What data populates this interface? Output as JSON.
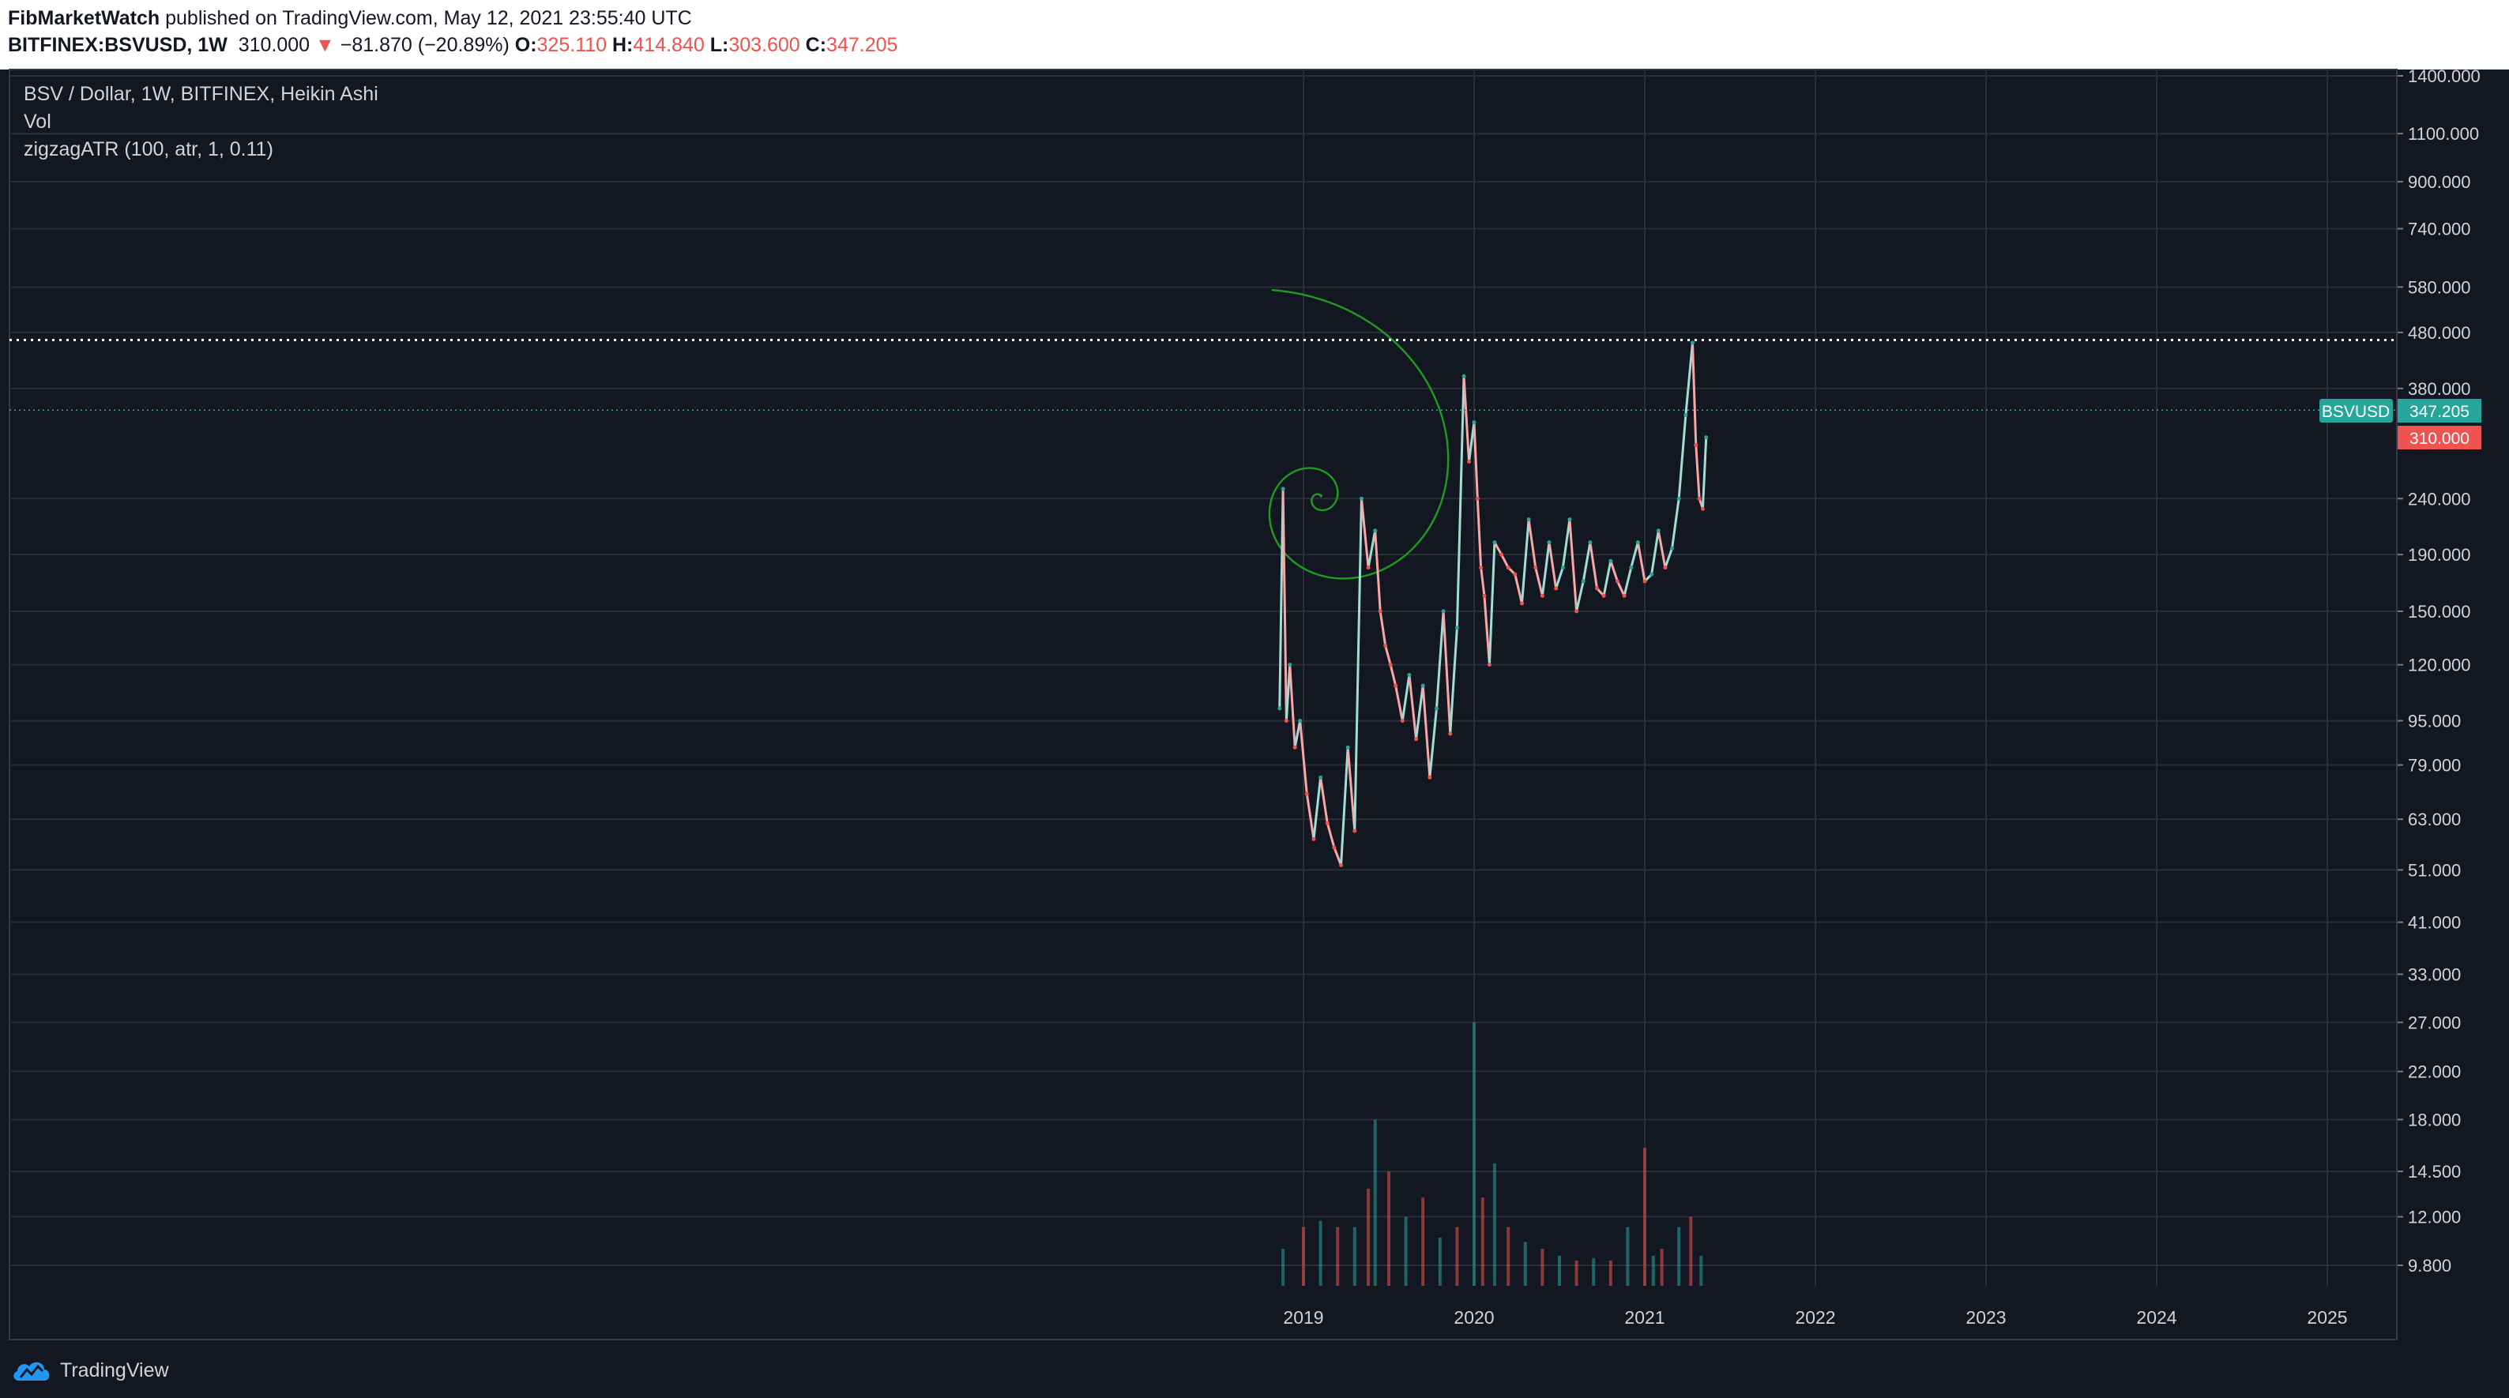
{
  "header": {
    "author": "FibMarketWatch",
    "published_text": "published on TradingView.com, May 12, 2021 23:55:40 UTC",
    "symbol": "BITFINEX:BSVUSD, 1W",
    "last_price": "310.000",
    "change_arrow": "▼",
    "change": "−81.870 (−20.89%)",
    "o_label": "O:",
    "o_value": "325.110",
    "h_label": "H:",
    "h_value": "414.840",
    "l_label": "L:",
    "l_value": "303.600",
    "c_label": "C:",
    "c_value": "347.205"
  },
  "legend": {
    "title": "BSV / Dollar, 1W, BITFINEX, Heikin Ashi",
    "vol": "Vol",
    "indicator": "zigzagATR (100, atr, 1, 0.11)"
  },
  "badges": {
    "symbol_label": "BSVUSD",
    "close_value": "347.205",
    "last_value": "310.000"
  },
  "footer": {
    "brand": "TradingView"
  },
  "colors": {
    "background": "#131722",
    "grid": "#2a2e39",
    "up": "#26a69a",
    "down": "#ef5350",
    "price_line_up": "#a3dcd5",
    "price_line_down": "#f7a8a6",
    "fib_spiral": "#1f9b1f",
    "resistance_line": "#ffffff"
  },
  "chart_data": {
    "type": "line",
    "title": "BSV / Dollar, 1W, BITFINEX, Heikin Ashi",
    "y_scale": "log",
    "ylim": [
      8.5,
      1500
    ],
    "xlim": [
      2011.75,
      2025.85
    ],
    "y_ticks": [
      "1400.000",
      "1100.000",
      "900.000",
      "740.000",
      "580.000",
      "480.000",
      "380.000",
      "240.000",
      "190.000",
      "150.000",
      "120.000",
      "95.000",
      "79.000",
      "63.000",
      "51.000",
      "41.000",
      "33.000",
      "27.000",
      "22.000",
      "18.000",
      "14.500",
      "12.000",
      "9.800"
    ],
    "x_ticks": [
      "2019",
      "2020",
      "2021",
      "2022",
      "2023",
      "2024",
      "2025"
    ],
    "grid": true,
    "price_series": {
      "x": [
        2018.86,
        2018.88,
        2018.9,
        2018.92,
        2018.95,
        2018.98,
        2019.02,
        2019.06,
        2019.1,
        2019.14,
        2019.18,
        2019.22,
        2019.26,
        2019.3,
        2019.34,
        2019.38,
        2019.42,
        2019.45,
        2019.48,
        2019.51,
        2019.54,
        2019.58,
        2019.62,
        2019.66,
        2019.7,
        2019.74,
        2019.78,
        2019.82,
        2019.86,
        2019.9,
        2019.94,
        2019.97,
        2020.0,
        2020.02,
        2020.04,
        2020.06,
        2020.09,
        2020.12,
        2020.16,
        2020.2,
        2020.24,
        2020.28,
        2020.32,
        2020.36,
        2020.4,
        2020.44,
        2020.48,
        2020.52,
        2020.56,
        2020.6,
        2020.64,
        2020.68,
        2020.72,
        2020.76,
        2020.8,
        2020.84,
        2020.88,
        2020.92,
        2020.96,
        2021.0,
        2021.04,
        2021.08,
        2021.12,
        2021.16,
        2021.2,
        2021.24,
        2021.28,
        2021.3,
        2021.32,
        2021.34,
        2021.36
      ],
      "y": [
        100,
        250,
        95,
        120,
        85,
        95,
        70,
        58,
        75,
        62,
        56,
        52,
        85,
        60,
        240,
        180,
        210,
        150,
        130,
        120,
        110,
        95,
        115,
        88,
        110,
        75,
        100,
        150,
        90,
        140,
        400,
        280,
        330,
        240,
        180,
        160,
        120,
        200,
        190,
        180,
        175,
        155,
        220,
        180,
        160,
        200,
        165,
        180,
        220,
        150,
        170,
        200,
        165,
        160,
        185,
        170,
        160,
        180,
        200,
        170,
        175,
        210,
        180,
        195,
        240,
        340,
        460,
        300,
        240,
        230,
        310
      ],
      "unit": "USD"
    },
    "volume_series": {
      "x": [
        2018.88,
        2019.0,
        2019.1,
        2019.2,
        2019.3,
        2019.38,
        2019.42,
        2019.5,
        2019.6,
        2019.7,
        2019.8,
        2019.9,
        2020.0,
        2020.05,
        2020.12,
        2020.2,
        2020.3,
        2020.4,
        2020.5,
        2020.6,
        2020.7,
        2020.8,
        2020.9,
        2021.0,
        2021.05,
        2021.1,
        2021.2,
        2021.27,
        2021.33
      ],
      "y": [
        10.5,
        11.5,
        11.8,
        11.5,
        11.5,
        13.5,
        18,
        14.5,
        12,
        13,
        11,
        11.5,
        27,
        13,
        15,
        11.5,
        10.8,
        10.5,
        10.2,
        10,
        10.1,
        10,
        11.5,
        16,
        10.2,
        10.5,
        11.5,
        12,
        10.2
      ]
    },
    "annotations": [
      {
        "type": "horizontal_line",
        "y": 465,
        "style": "dotted"
      },
      {
        "type": "fibonacci_spiral",
        "center_x": 2019.09,
        "center_y": 240
      }
    ],
    "last_close": 347.205,
    "last_price": 310.0
  }
}
